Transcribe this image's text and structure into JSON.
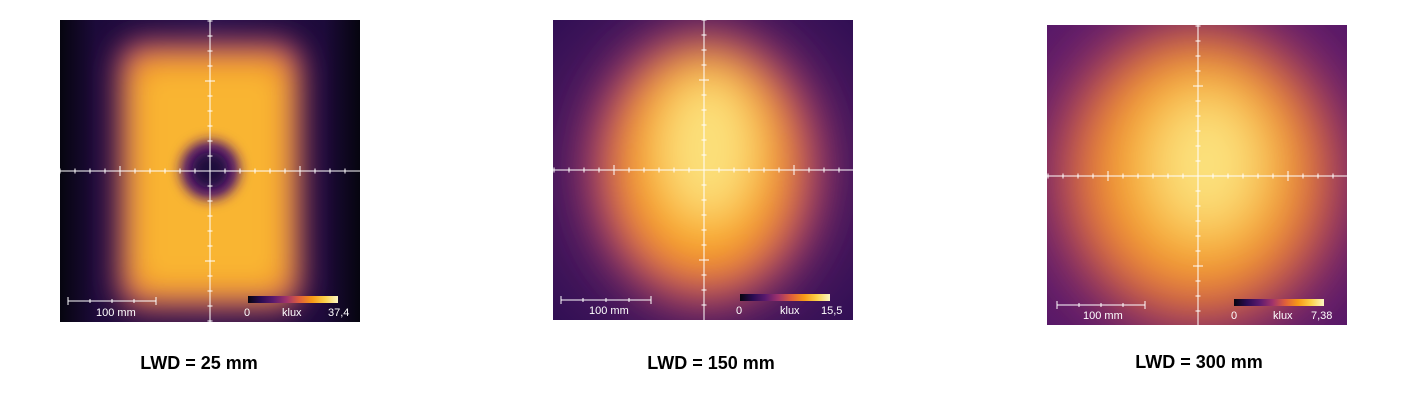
{
  "panels": [
    {
      "caption": "LWD = 25 mm",
      "scale_bar_label": "100 mm",
      "colorbar": {
        "min": "0",
        "unit": "klux",
        "max": "37,4"
      }
    },
    {
      "caption": "LWD = 150 mm",
      "scale_bar_label": "100 mm",
      "colorbar": {
        "min": "0",
        "unit": "klux",
        "max": "15,5"
      }
    },
    {
      "caption": "LWD = 300 mm",
      "scale_bar_label": "100 mm",
      "colorbar": {
        "min": "0",
        "unit": "klux",
        "max": "7,38"
      }
    }
  ],
  "colormap": [
    "#06050f",
    "#2a0b52",
    "#5b1a6e",
    "#a1336b",
    "#e0603a",
    "#f79a16",
    "#fcd24a",
    "#fcf6c2"
  ]
}
